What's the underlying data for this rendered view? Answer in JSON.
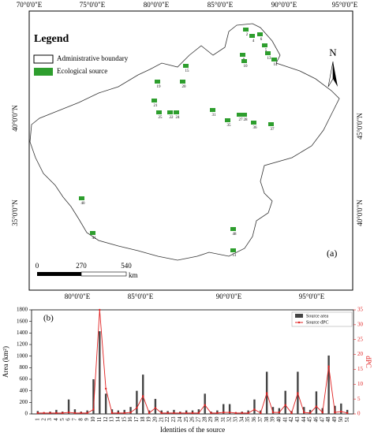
{
  "map": {
    "legend_title": "Legend",
    "legend_items": [
      "Administrative boundary",
      "Ecological source"
    ],
    "north": "N",
    "panel": "(a)",
    "scale_labels": [
      "0",
      "270",
      "540",
      "km"
    ],
    "top_lon_labels": [
      "70°0'0\"E",
      "75°0'0\"E",
      "80°0'0\"E",
      "85°0'0\"E",
      "90°0'0\"E",
      "95°0'0\"E"
    ],
    "bottom_lon_labels": [
      "80°0'0\"E",
      "85°0'0\"E",
      "90°0'0\"E",
      "95°0'0\"E"
    ],
    "left_lat_labels": [
      "40°0'0\"N",
      "35°0'0\"N"
    ],
    "right_lat_labels": [
      "45°0'0\"N",
      "40°0'0\"N"
    ],
    "source_labels": [
      "2",
      "4",
      "5",
      "6",
      "9",
      "10",
      "13",
      "14",
      "15",
      "19",
      "20",
      "21",
      "22",
      "24",
      "25",
      "27",
      "28",
      "31",
      "35",
      "36",
      "37",
      "40",
      "41",
      "48",
      "51"
    ]
  },
  "chart_data": {
    "type": "bar_line",
    "panel": "(b)",
    "xlabel": "Identities of the source",
    "ylabel": "Area (km²)",
    "y2label": "dPC",
    "categories": [
      "1",
      "2",
      "3",
      "4",
      "5",
      "6",
      "7",
      "8",
      "9",
      "10",
      "11",
      "12",
      "13",
      "14",
      "15",
      "16",
      "17",
      "18",
      "19",
      "20",
      "21",
      "22",
      "23",
      "24",
      "25",
      "26",
      "27",
      "28",
      "29",
      "30",
      "31",
      "32",
      "33",
      "34",
      "35",
      "36",
      "37",
      "38",
      "39",
      "40",
      "41",
      "42",
      "43",
      "44",
      "45",
      "46",
      "47",
      "48",
      "49",
      "50",
      "51"
    ],
    "series": [
      {
        "name": "Source area",
        "color": "#444444",
        "type": "bar",
        "values": [
          50,
          30,
          40,
          70,
          40,
          250,
          80,
          40,
          60,
          600,
          1430,
          350,
          80,
          60,
          70,
          120,
          400,
          680,
          60,
          260,
          60,
          50,
          70,
          40,
          60,
          60,
          80,
          350,
          40,
          60,
          170,
          170,
          30,
          40,
          60,
          250,
          60,
          730,
          120,
          100,
          400,
          50,
          730,
          120,
          70,
          390,
          100,
          1010,
          140,
          180,
          70
        ]
      },
      {
        "name": "Source dPC",
        "color": "#e02020",
        "type": "line",
        "axis": "y2",
        "values": [
          0.3,
          0.3,
          0.3,
          0.3,
          0.3,
          0.5,
          0.3,
          0.3,
          0.3,
          1.5,
          35,
          8.5,
          0.3,
          0.3,
          0.3,
          0.5,
          2,
          6,
          0.3,
          2,
          0.3,
          0.3,
          0.3,
          0.3,
          0.3,
          0.3,
          0.3,
          3,
          0.3,
          0.3,
          0.5,
          0.5,
          0.3,
          0.3,
          0.3,
          1.5,
          0.3,
          7,
          0.5,
          0.5,
          3,
          0.3,
          7,
          0.5,
          0.3,
          2.5,
          0.5,
          16,
          0.5,
          0.8,
          0.3
        ]
      }
    ],
    "ylim": [
      0,
      1800
    ],
    "yticks": [
      0,
      200,
      400,
      600,
      800,
      1000,
      1200,
      1400,
      1600,
      1800
    ],
    "y2lim": [
      0,
      35
    ],
    "y2ticks": [
      0,
      5,
      10,
      15,
      20,
      25,
      30,
      35
    ]
  }
}
